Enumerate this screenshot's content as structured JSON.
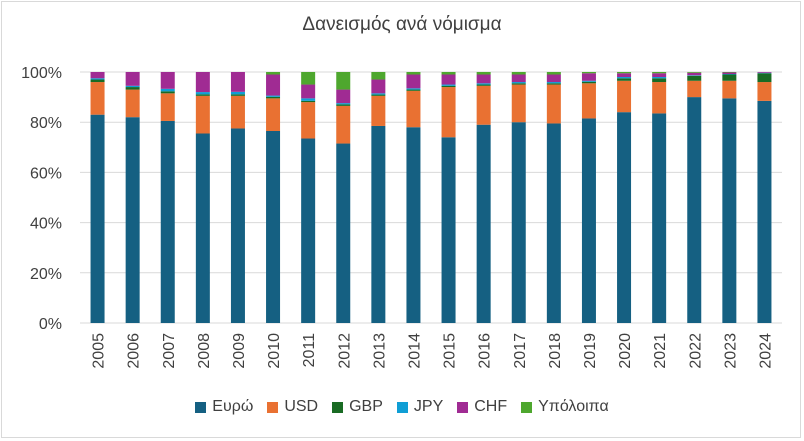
{
  "chart_data": {
    "type": "bar",
    "stacked": true,
    "title": "Δανεισμός ανά νόμισμα",
    "xlabel": "",
    "ylabel": "",
    "ylim": [
      0,
      100
    ],
    "yticks": [
      "0%",
      "20%",
      "40%",
      "60%",
      "80%",
      "100%"
    ],
    "grid": true,
    "legend": "bottom",
    "categories": [
      "2005",
      "2006",
      "2007",
      "2008",
      "2009",
      "2010",
      "2011",
      "2012",
      "2013",
      "2014",
      "2015",
      "2016",
      "2017",
      "2018",
      "2019",
      "2020",
      "2021",
      "2022",
      "2023",
      "2024"
    ],
    "series": [
      {
        "name": "Ευρώ",
        "color": "#156082",
        "values": [
          83,
          82,
          80.5,
          75.5,
          77.5,
          76.5,
          73.5,
          71.5,
          78.5,
          78,
          74,
          79,
          80,
          79.5,
          81.5,
          84,
          83.5,
          90,
          89.5,
          88.5
        ]
      },
      {
        "name": "USD",
        "color": "#E97132",
        "values": [
          13,
          11,
          11,
          15,
          13,
          13,
          14.5,
          15,
          12,
          14.5,
          20,
          15.5,
          15,
          15.5,
          14,
          12.5,
          12.5,
          6.5,
          7,
          7.5
        ]
      },
      {
        "name": "GBP",
        "color": "#196B24",
        "values": [
          1,
          1,
          0.8,
          0.6,
          0.6,
          0.6,
          0.5,
          0.6,
          0.5,
          0.5,
          0.5,
          0.5,
          0.5,
          0.5,
          0.6,
          1,
          1.5,
          2,
          2.5,
          3.5
        ]
      },
      {
        "name": "JPY",
        "color": "#0F9ED5",
        "values": [
          0.5,
          0.5,
          1,
          0.9,
          1,
          0.5,
          1,
          0.5,
          0.5,
          0.5,
          0.5,
          0.5,
          0.5,
          0.5,
          0.4,
          0.5,
          0.5,
          0.2,
          0.2,
          0.2
        ]
      },
      {
        "name": "CHF",
        "color": "#A02B93",
        "values": [
          2.5,
          5.5,
          6.7,
          8,
          7.9,
          8.4,
          5.5,
          5.4,
          5.5,
          5.5,
          4,
          3.5,
          3,
          3,
          3,
          1.5,
          1.5,
          1,
          0.6,
          0.3
        ]
      },
      {
        "name": "Υπόλοιπα",
        "color": "#4EA72E",
        "values": [
          0,
          0,
          0,
          0,
          0,
          1,
          5,
          7,
          3,
          1,
          1,
          1,
          1,
          1,
          0.5,
          0.5,
          0.5,
          0.3,
          0.2,
          0
        ]
      }
    ]
  }
}
